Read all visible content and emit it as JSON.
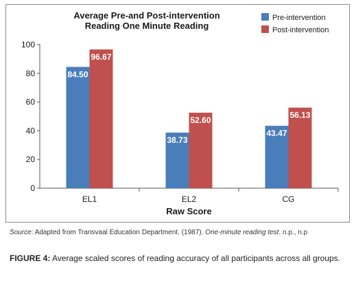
{
  "chart_data": {
    "type": "bar",
    "title": [
      "Average Pre-and Post-intervention",
      "Reading One Minute Reading"
    ],
    "categories": [
      "EL1",
      "EL2",
      "CG"
    ],
    "series": [
      {
        "name": "Pre-intervention",
        "color": "#4a7ebb",
        "values": [
          84.5,
          38.73,
          43.47
        ],
        "labels": [
          "84.50",
          "38.73",
          "43.47"
        ]
      },
      {
        "name": "Post-intervention",
        "color": "#c0504d",
        "values": [
          96.67,
          52.6,
          56.13
        ],
        "labels": [
          "96.67",
          "52.60",
          "56.13"
        ]
      }
    ],
    "xlabel": "Raw Score",
    "ylabel": "",
    "ylim": [
      0,
      100
    ],
    "yticks": [
      "0",
      "20",
      "40",
      "60",
      "80",
      "100"
    ],
    "grid": false,
    "legend_position": "top-right"
  },
  "source": {
    "label": "Source",
    "text_before": ": Adapted from Transvaal Education Department. (1987). ",
    "title": "One-minute reading test",
    "text_after": ". n.p., n.p"
  },
  "caption": {
    "label": "FIGURE 4:",
    "text": " Average scaled scores of reading accuracy of all participants across all groups."
  }
}
